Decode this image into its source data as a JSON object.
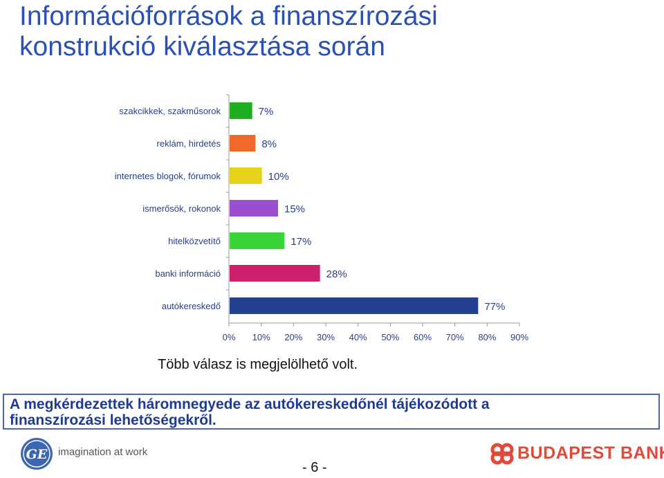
{
  "title": {
    "line1": "Információforrások a finanszírozási",
    "line2": "konstrukció kiválasztása során"
  },
  "chart_data": {
    "type": "bar",
    "orientation": "horizontal",
    "categories": [
      "szakcikkek, szakműsorok",
      "reklám, hirdetés",
      "internetes blogok, fórumok",
      "ismerősök, rokonok",
      "hitelközvetítő",
      "banki információ",
      "autókereskedő"
    ],
    "values": [
      7,
      8,
      10,
      15,
      17,
      28,
      77
    ],
    "value_labels": [
      "7%",
      "8%",
      "10%",
      "15%",
      "17%",
      "28%",
      "77%"
    ],
    "bar_colors": [
      "#1fae1f",
      "#f0682a",
      "#e6d21a",
      "#9a4fd0",
      "#38d438",
      "#cc1f6c",
      "#23418f"
    ],
    "xlim": [
      0,
      90
    ],
    "xticks": [
      "0%",
      "10%",
      "20%",
      "30%",
      "40%",
      "50%",
      "60%",
      "70%",
      "80%",
      "90%"
    ],
    "title": "",
    "xlabel": "",
    "ylabel": "",
    "grid": false
  },
  "note": "Több válasz is megjelölhető volt.",
  "summary": {
    "line1": "A megkérdezettek háromnegyede az autókereskedőnél tájékozódott a",
    "line2": "finanszírozási lehetőségekről."
  },
  "footer": {
    "ge_logo_text": "GE",
    "tagline": "imagination at work",
    "page_number": "- 6 -",
    "bank_name": "BUDAPEST BANK"
  },
  "colors": {
    "title": "#2b50b4",
    "summary_text": "#1f3a93",
    "bank_red": "#e14a3b"
  }
}
